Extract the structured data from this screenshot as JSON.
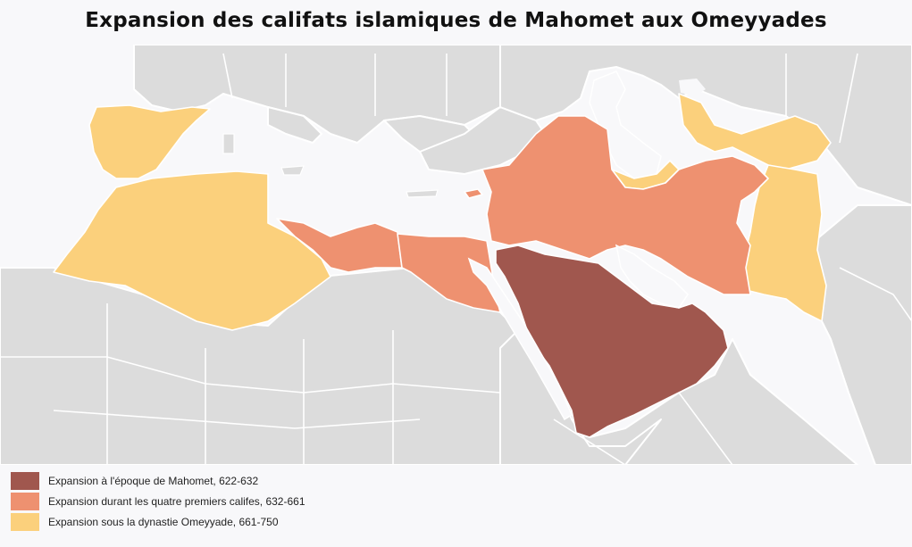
{
  "title": "Expansion des califats islamiques de Mahomet aux Omeyyades",
  "colors": {
    "background": "#f8f8fa",
    "land": "#dcdcdc",
    "sea": "#f8f8fa",
    "border": "#ffffff",
    "mahomet": "#a0574e",
    "quatre_califes": "#ee9170",
    "omeyyades": "#fbd07c"
  },
  "legend": {
    "items": [
      {
        "label": "Expansion à l'époque de Mahomet, 622-632",
        "color": "#a0574e"
      },
      {
        "label": "Expansion durant les quatre premiers califes, 632-661",
        "color": "#ee9170"
      },
      {
        "label": "Expansion sous la dynastie Omeyyade, 661-750",
        "color": "#fbd07c"
      }
    ]
  }
}
